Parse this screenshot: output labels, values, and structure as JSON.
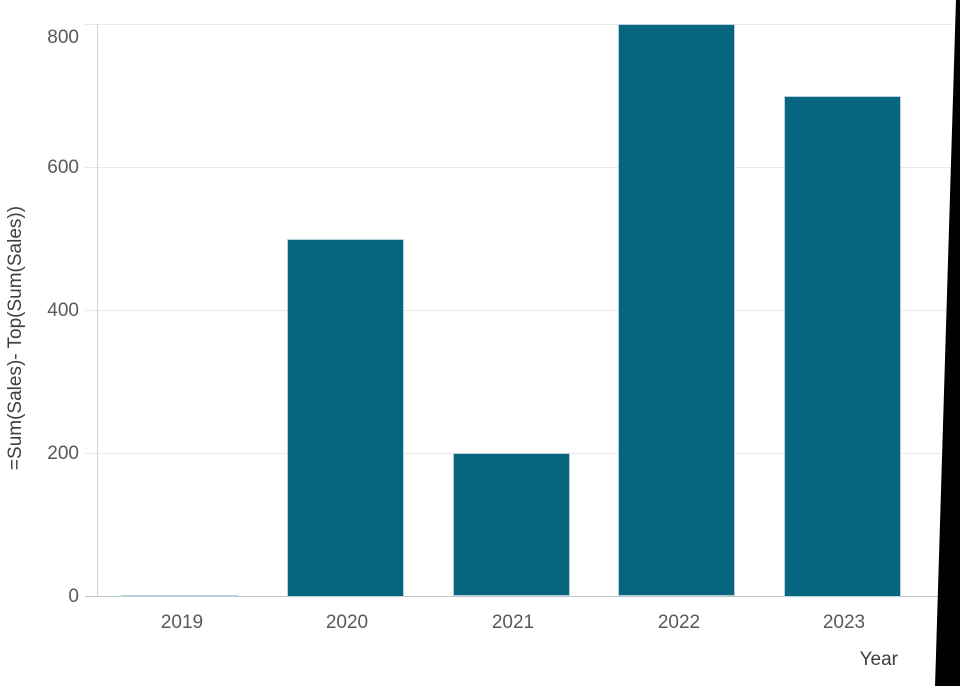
{
  "chart_data": {
    "type": "bar",
    "title": "",
    "categories": [
      "2019",
      "2020",
      "2021",
      "2022",
      "2023"
    ],
    "values": [
      0,
      500,
      200,
      800,
      700
    ],
    "xlabel": "Year",
    "ylabel": "=Sum(Sales)- Top(Sum(Sales))",
    "ylim": [
      0,
      800
    ],
    "yticks": [
      0,
      200,
      400,
      600,
      800
    ],
    "grid": true,
    "legend_position": "none",
    "colors": {
      "bar_fill": "#076580",
      "bar_border": "#b9d1da",
      "gridline": "#e9e9e9",
      "zero_line": "#bdc3c8",
      "axis_line": "#d2d2d2",
      "tick_label": "#595959",
      "axis_title": "#404040",
      "edge_artifact": "#000000"
    }
  }
}
